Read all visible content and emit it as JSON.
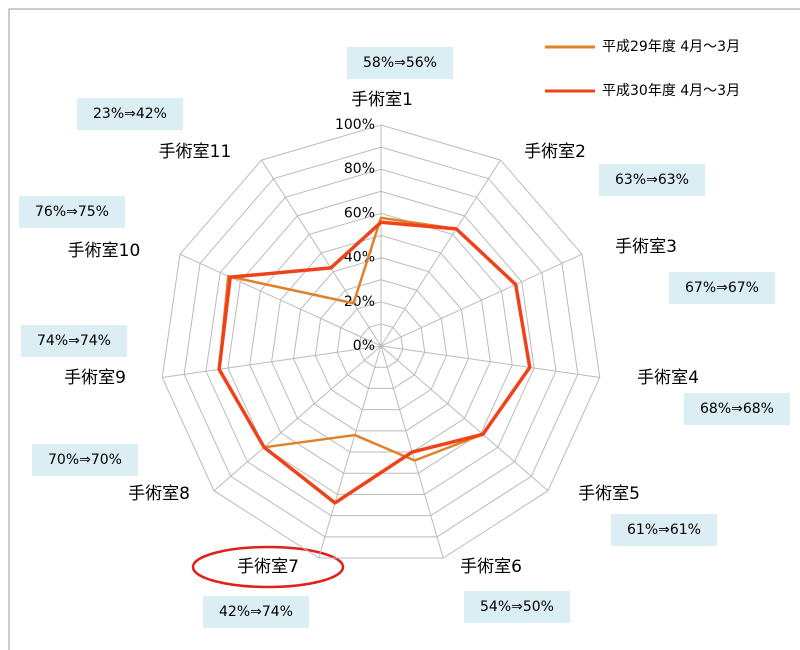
{
  "chart_data": {
    "type": "radar",
    "categories": [
      "手術室1",
      "手術室2",
      "手術室3",
      "手術室4",
      "手術室5",
      "手術室6",
      "手術室7",
      "手術室8",
      "手術室9",
      "手術室10",
      "手術室11"
    ],
    "series": [
      {
        "name": "平成29年度 4月～3月",
        "color": "#e2802a",
        "values": [
          58,
          63,
          67,
          68,
          61,
          54,
          42,
          70,
          74,
          76,
          23
        ]
      },
      {
        "name": "平成30年度 4月～3月",
        "color": "#f0421a",
        "values": [
          56,
          63,
          67,
          68,
          61,
          50,
          74,
          70,
          74,
          75,
          42
        ]
      }
    ],
    "annotations": [
      "58%⇒56%",
      "63%⇒63%",
      "67%⇒67%",
      "68%⇒68%",
      "61%⇒61%",
      "54%⇒50%",
      "42%⇒74%",
      "70%⇒70%",
      "74%⇒74%",
      "76%⇒75%",
      "23%⇒42%"
    ],
    "ylim": [
      0,
      100
    ],
    "yticks": [
      {
        "value": 0,
        "label": "0%"
      },
      {
        "value": 20,
        "label": "20%"
      },
      {
        "value": 40,
        "label": "40%"
      },
      {
        "value": 60,
        "label": "60%"
      },
      {
        "value": 80,
        "label": "80%"
      },
      {
        "value": 100,
        "label": "100%"
      }
    ],
    "minor_yticks": [
      10,
      30,
      50,
      70,
      90
    ],
    "grid": true,
    "legend": "top-right"
  }
}
